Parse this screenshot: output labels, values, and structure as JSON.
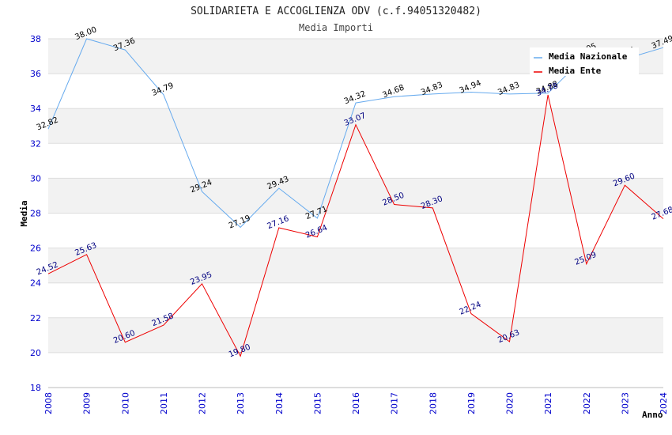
{
  "chart_data": {
    "type": "line",
    "title": "SOLIDARIETA E ACCOGLIENZA ODV (c.f.94051320482)",
    "subtitle": "Media Importi",
    "xlabel": "Anno",
    "ylabel": "Media",
    "ylim": [
      18,
      38
    ],
    "yticks": [
      18,
      20,
      22,
      24,
      26,
      28,
      30,
      32,
      34,
      36,
      38
    ],
    "x": [
      "2008",
      "2009",
      "2010",
      "2011",
      "2012",
      "2013",
      "2014",
      "2015",
      "2016",
      "2017",
      "2018",
      "2019",
      "2020",
      "2021",
      "2022",
      "2023",
      "2024"
    ],
    "legend_position": "top-right",
    "series": [
      {
        "name": "Media Nazionale",
        "color": "#66aaee",
        "values": [
          32.82,
          38.0,
          37.36,
          34.79,
          29.24,
          27.19,
          29.43,
          27.71,
          34.32,
          34.68,
          34.83,
          34.94,
          34.83,
          34.88,
          37.05,
          36.84,
          37.49
        ],
        "labels": [
          "32.82",
          "38.00",
          "37.36",
          "34.79",
          "29.24",
          "27.19",
          "29.43",
          "27.71",
          "34.32",
          "34.68",
          "34.83",
          "34.94",
          "34.83",
          "34.88",
          "37.05",
          "36.84",
          "37.49"
        ]
      },
      {
        "name": "Media Ente",
        "color": "#ee0000",
        "values": [
          24.52,
          25.63,
          20.6,
          21.58,
          23.95,
          19.8,
          27.16,
          26.64,
          33.07,
          28.5,
          28.3,
          22.24,
          20.63,
          34.78,
          25.09,
          29.6,
          27.68
        ],
        "labels": [
          "24.52",
          "25.63",
          "20.60",
          "21.58",
          "23.95",
          "19.80",
          "27.16",
          "26.64",
          "33.07",
          "28.50",
          "28.30",
          "22.24",
          "20.63",
          "34.78",
          "25.09",
          "29.60",
          "27.68"
        ]
      }
    ]
  }
}
